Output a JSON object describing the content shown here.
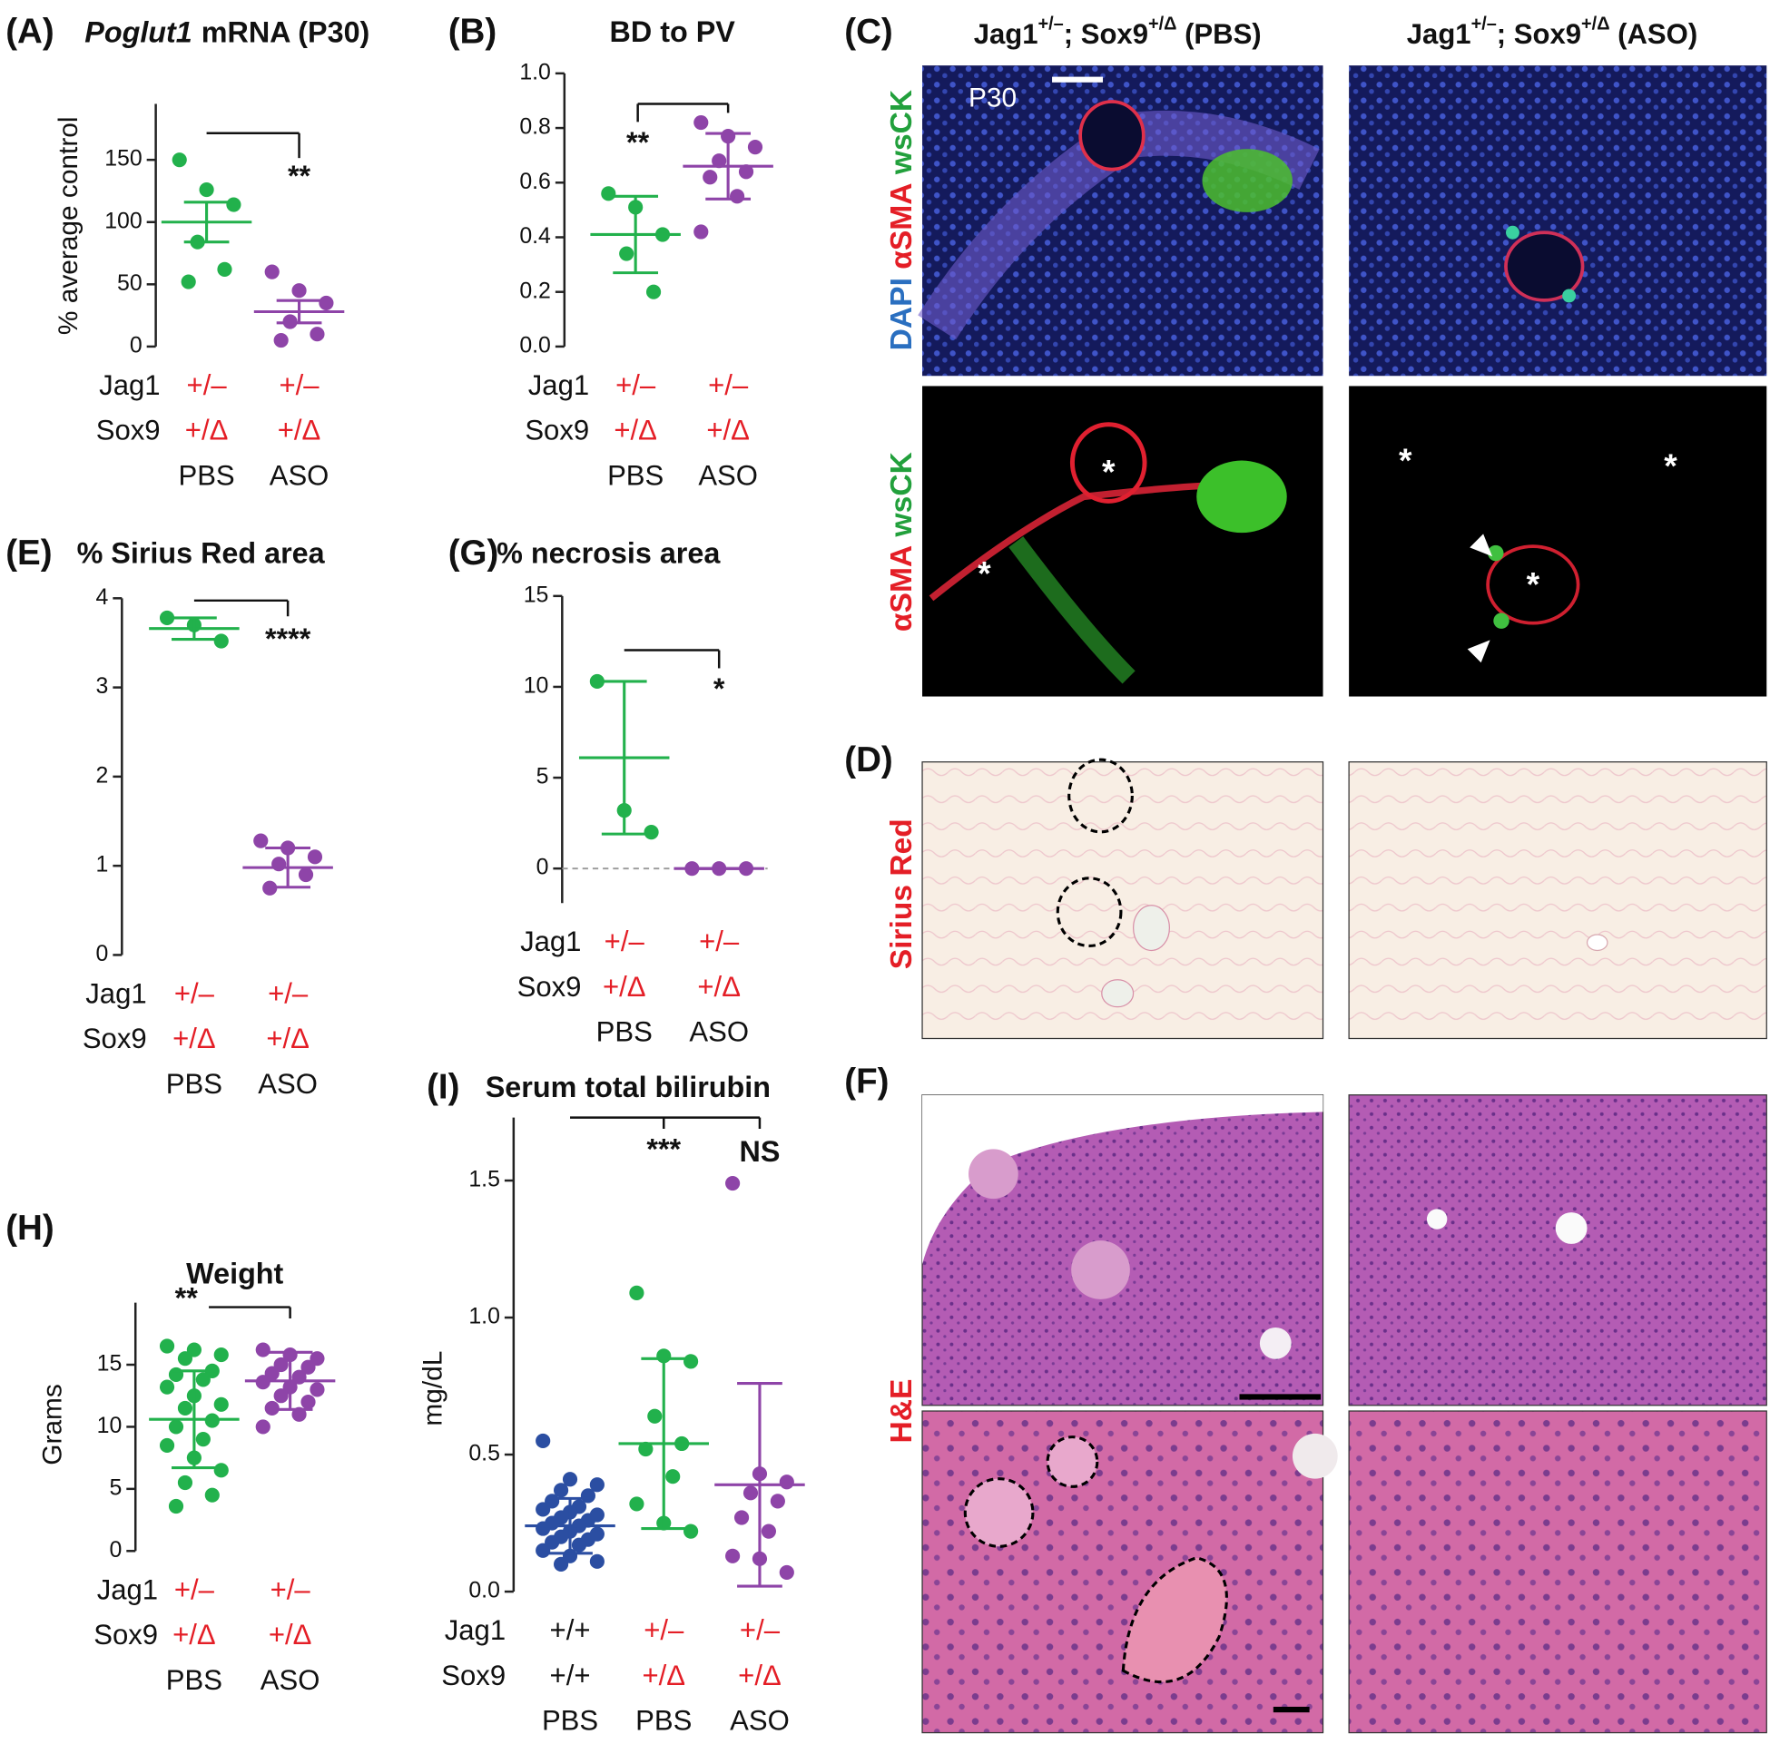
{
  "chart_data": [
    {
      "type": "dot",
      "panel": "(A)",
      "title_parts": [
        "Poglut1",
        "mRNA (P30)"
      ],
      "ylabel": "% average control",
      "ylim": [
        0,
        195
      ],
      "yticks": [
        0,
        50,
        100,
        150
      ],
      "row_labels": [
        "Jag1",
        "Sox9"
      ],
      "zero_line": false,
      "groups": [
        {
          "jag1": "+/–",
          "sox9": "+/Δ",
          "treatment": "PBS",
          "color": "#22b14c",
          "label_color": "#e41e26",
          "values": [
            150,
            126,
            114,
            84,
            62,
            52
          ],
          "mean": 100,
          "error": 16
        },
        {
          "jag1": "+/–",
          "sox9": "+/Δ",
          "treatment": "ASO",
          "color": "#8e44a8",
          "label_color": "#e41e26",
          "values": [
            60,
            45,
            35,
            20,
            10,
            5
          ],
          "mean": 28,
          "error": 9
        }
      ],
      "annotations": [
        "**"
      ]
    },
    {
      "type": "dot",
      "panel": "(B)",
      "title": "BD to PV",
      "ylim": [
        0,
        1
      ],
      "yticks": [
        {
          "value": 0,
          "label": "0.0"
        },
        0.2,
        0.4,
        0.6,
        0.8,
        {
          "value": 1,
          "label": "1.0"
        }
      ],
      "row_labels": [
        "Jag1",
        "Sox9"
      ],
      "zero_line": false,
      "groups": [
        {
          "jag1": "+/–",
          "sox9": "+/Δ",
          "treatment": "PBS",
          "color": "#22b14c",
          "label_color": "#e41e26",
          "values": [
            0.56,
            0.51,
            0.41,
            0.34,
            0.2
          ],
          "mean": 0.41,
          "error": 0.14
        },
        {
          "jag1": "+/–",
          "sox9": "+/Δ",
          "treatment": "ASO",
          "color": "#8e44a8",
          "label_color": "#e41e26",
          "values": [
            0.82,
            0.77,
            0.73,
            0.68,
            0.64,
            0.62,
            0.55,
            0.42
          ],
          "mean": 0.66,
          "error": 0.12
        }
      ],
      "annotations": [
        "**"
      ]
    },
    {
      "type": "dot",
      "panel": "(E)",
      "title": "% Sirius Red area",
      "ylim": [
        0,
        4
      ],
      "yticks": [
        0,
        1,
        2,
        3,
        4
      ],
      "row_labels": [
        "Jag1",
        "Sox9"
      ],
      "zero_line": false,
      "groups": [
        {
          "jag1": "+/–",
          "sox9": "+/Δ",
          "treatment": "PBS",
          "color": "#22b14c",
          "label_color": "#e41e26",
          "values": [
            3.78,
            3.7,
            3.52
          ],
          "mean": 3.66,
          "error": 0.12
        },
        {
          "jag1": "+/–",
          "sox9": "+/Δ",
          "treatment": "ASO",
          "color": "#8e44a8",
          "label_color": "#e41e26",
          "values": [
            1.28,
            1.2,
            1.1,
            1.02,
            0.9,
            0.75
          ],
          "mean": 0.98,
          "error": 0.22
        }
      ],
      "annotations": [
        "****"
      ]
    },
    {
      "type": "dot",
      "panel": "(G)",
      "title": "% necrosis area",
      "ylim": [
        -1.9,
        15
      ],
      "yticks": [
        0,
        5,
        10,
        15
      ],
      "row_labels": [
        "Jag1",
        "Sox9"
      ],
      "zero_line": true,
      "groups": [
        {
          "jag1": "+/–",
          "sox9": "+/Δ",
          "treatment": "PBS",
          "color": "#22b14c",
          "label_color": "#e41e26",
          "values": [
            10.3,
            3.2,
            2.0
          ],
          "mean": 6.1,
          "error": 4.2
        },
        {
          "jag1": "+/–",
          "sox9": "+/Δ",
          "treatment": "ASO",
          "color": "#8e44a8",
          "label_color": "#e41e26",
          "values": [
            0,
            0,
            0
          ],
          "mean": 0,
          "error": 0
        }
      ],
      "annotations": [
        "*"
      ]
    },
    {
      "type": "dot",
      "panel": "(H)",
      "title": "Weight",
      "ylabel": "Grams",
      "ylim": [
        0,
        20
      ],
      "yticks": [
        0,
        5,
        10,
        15
      ],
      "row_labels": [
        "Jag1",
        "Sox9"
      ],
      "zero_line": false,
      "groups": [
        {
          "jag1": "+/–",
          "sox9": "+/Δ",
          "treatment": "PBS",
          "color": "#22b14c",
          "label_color": "#e41e26",
          "values": [
            16.5,
            16.2,
            15.8,
            15.5,
            14.5,
            14.2,
            13.8,
            13.2,
            12.5,
            11.8,
            11.5,
            10.5,
            10,
            9,
            8.5,
            7.5,
            6.5,
            5.5,
            4.5,
            3.6
          ],
          "mean": 10.6,
          "error": 3.9
        },
        {
          "jag1": "+/–",
          "sox9": "+/Δ",
          "treatment": "ASO",
          "color": "#8e44a8",
          "label_color": "#e41e26",
          "values": [
            16.2,
            15.8,
            15.5,
            15,
            14.8,
            14.3,
            14,
            13.6,
            13.2,
            13,
            12.5,
            12,
            11.5,
            11,
            10
          ],
          "mean": 13.7,
          "error": 2.3
        }
      ],
      "annotations": [
        "**"
      ]
    },
    {
      "type": "dot",
      "panel": "(I)",
      "title": "Serum total bilirubin",
      "ylabel": "mg/dL",
      "ylim": [
        0,
        1.73
      ],
      "yticks": [
        {
          "value": 0,
          "label": "0.0"
        },
        0.5,
        {
          "value": 1,
          "label": "1.0"
        },
        1.5
      ],
      "row_labels": [
        "Jag1",
        "Sox9"
      ],
      "zero_line": false,
      "groups": [
        {
          "jag1": "+/+",
          "sox9": "+/+",
          "treatment": "PBS",
          "color": "#2b4ea2",
          "label_color": "#111111",
          "values": [
            0.55,
            0.41,
            0.39,
            0.37,
            0.35,
            0.33,
            0.31,
            0.3,
            0.29,
            0.28,
            0.27,
            0.26,
            0.25,
            0.24,
            0.23,
            0.22,
            0.21,
            0.2,
            0.19,
            0.18,
            0.17,
            0.15,
            0.13,
            0.11,
            0.1
          ],
          "mean": 0.24,
          "error": 0.1
        },
        {
          "jag1": "+/–",
          "sox9": "+/Δ",
          "treatment": "PBS",
          "color": "#22b14c",
          "label_color": "#e41e26",
          "values": [
            1.09,
            0.86,
            0.84,
            0.64,
            0.54,
            0.52,
            0.42,
            0.32,
            0.25,
            0.22
          ],
          "mean": 0.54,
          "error": 0.31
        },
        {
          "jag1": "+/–",
          "sox9": "+/Δ",
          "treatment": "ASO",
          "color": "#8e44a8",
          "label_color": "#e41e26",
          "values": [
            1.49,
            0.43,
            0.4,
            0.36,
            0.33,
            0.27,
            0.22,
            0.13,
            0.12,
            0.07
          ],
          "mean": 0.39,
          "error": 0.37
        }
      ],
      "annotations": [
        "***",
        "NS"
      ]
    }
  ],
  "panel_c": {
    "label": "(C)",
    "headers": [
      [
        "Jag1",
        "+/–",
        "; Sox9",
        "+/Δ",
        " (PBS)"
      ],
      [
        "Jag1",
        "+/–",
        "; Sox9",
        "+/Δ",
        " (ASO)"
      ]
    ],
    "time": "P30",
    "stain_top": [
      "DAPI",
      "αSMA",
      "wsCK"
    ],
    "stain_bottom": [
      "αSMA",
      "wsCK"
    ],
    "markers": [
      "*",
      "*",
      "*",
      "*",
      "*"
    ]
  },
  "panel_d": {
    "label": "(D)",
    "stain": "Sirius Red"
  },
  "panel_f": {
    "label": "(F)",
    "stain": "H&E"
  }
}
